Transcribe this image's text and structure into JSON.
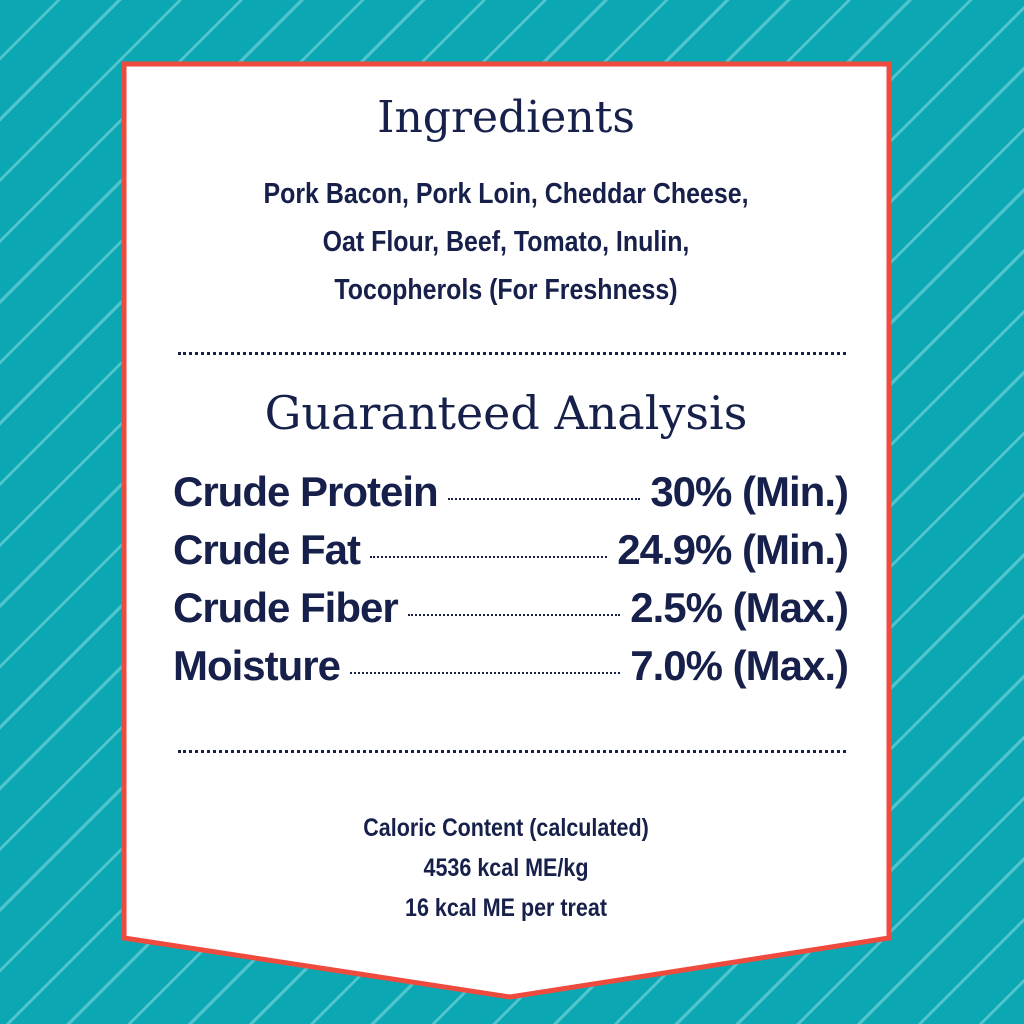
{
  "colors": {
    "background": "#0ba8b4",
    "border": "#ef4a3e",
    "text": "#16204a"
  },
  "ingredients": {
    "title": "Ingredients",
    "lines": [
      "Pork Bacon, Pork Loin, Cheddar Cheese,",
      "Oat Flour, Beef, Tomato, Inulin,",
      "Tocopherols (For Freshness)"
    ]
  },
  "guaranteed_analysis": {
    "title": "Guaranteed Analysis",
    "rows": [
      {
        "label": "Crude Protein",
        "value": "30% (Min.)"
      },
      {
        "label": "Crude Fat",
        "value": "24.9% (Min.)"
      },
      {
        "label": "Crude Fiber",
        "value": "2.5% (Max.)"
      },
      {
        "label": "Moisture",
        "value": "7.0% (Max.)"
      }
    ]
  },
  "caloric": {
    "lines": [
      "Caloric Content (calculated)",
      "4536 kcal ME/kg",
      "16 kcal ME per treat"
    ]
  }
}
